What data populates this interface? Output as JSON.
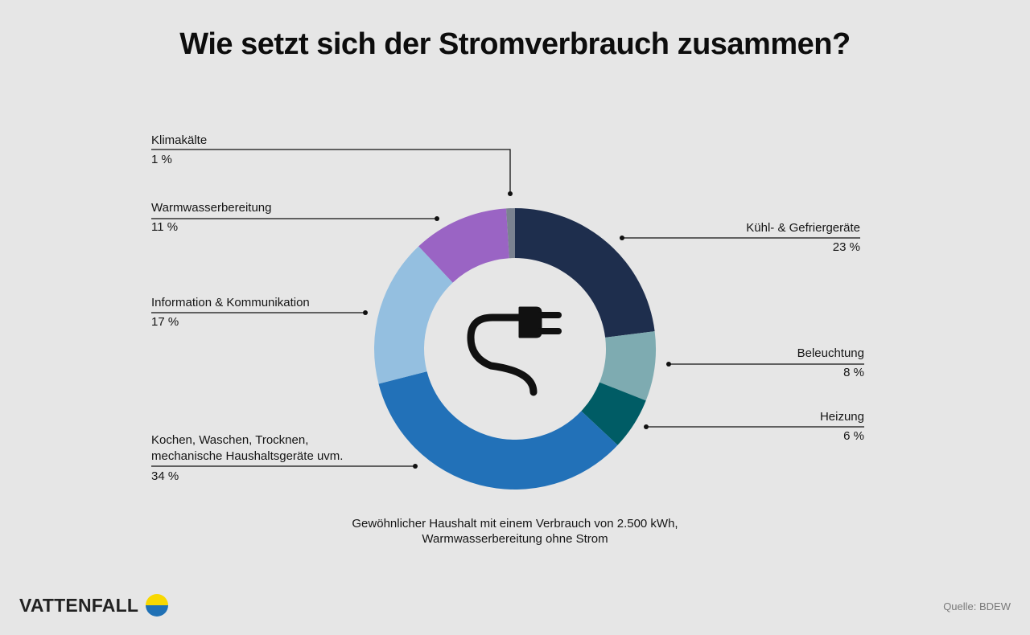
{
  "title": "Wie setzt sich der Stromverbrauch zusammen?",
  "chart_data": {
    "type": "pie",
    "variant": "donut",
    "unit": "%",
    "slices": [
      {
        "name": "Kühl- & Gefriergeräte",
        "value": 23,
        "display": "23 %",
        "color": "#1e2e4d"
      },
      {
        "name": "Beleuchtung",
        "value": 8,
        "display": "8 %",
        "color": "#7eabb1"
      },
      {
        "name": "Heizung",
        "value": 6,
        "display": "6 %",
        "color": "#005c65"
      },
      {
        "name": "Kochen, Waschen, Trocknen, mechanische Haushaltsgeräte uvm.",
        "line1": "Kochen, Waschen, Trocknen,",
        "line2": "mechanische Haushaltsgeräte uvm.",
        "value": 34,
        "display": "34 %",
        "color": "#2271b8"
      },
      {
        "name": "Information & Kommunikation",
        "value": 17,
        "display": "17 %",
        "color": "#94bfe0"
      },
      {
        "name": "Warmwasserbereitung",
        "value": 11,
        "display": "11 %",
        "color": "#9a64c4"
      },
      {
        "name": "Klimakälte",
        "value": 1,
        "display": "1 %",
        "color": "#7a8290"
      }
    ],
    "center_icon": "power-plug-icon"
  },
  "note": {
    "line1": "Gewöhnlicher Haushalt mit einem Verbrauch von 2.500 kWh,",
    "line2": "Warmwasserbereitung ohne Strom"
  },
  "logo": {
    "text": "VATTENFALL",
    "colors": {
      "top": "#f8d800",
      "bottom": "#2071b5"
    }
  },
  "source": "Quelle: BDEW"
}
